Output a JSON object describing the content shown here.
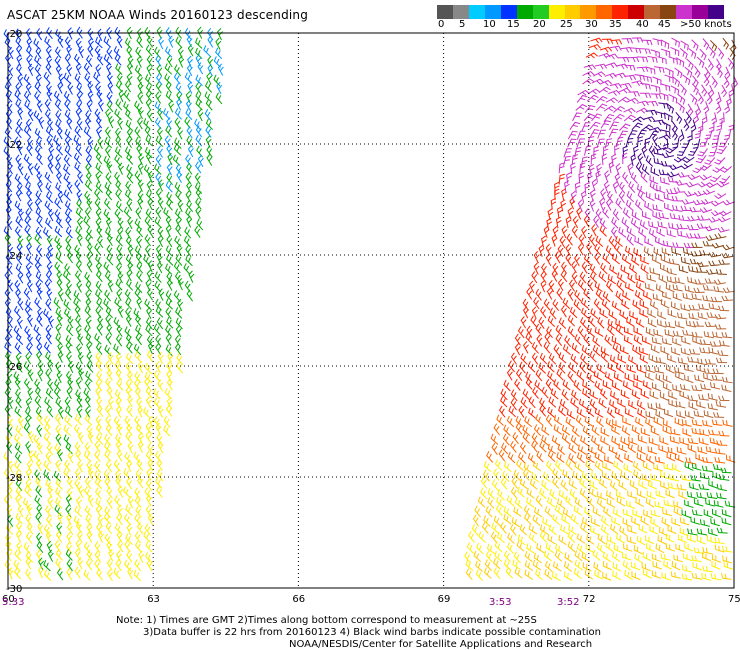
{
  "title": "ASCAT 25KM NOAA Winds 20160123 descending",
  "colorbar": {
    "colors": [
      "#555555",
      "#888888",
      "#00ccff",
      "#0099ff",
      "#0033ff",
      "#00aa00",
      "#22cc22",
      "#ffee00",
      "#ffcc00",
      "#ff9900",
      "#ff6600",
      "#ff2200",
      "#cc0000",
      "#bb6633",
      "#884411",
      "#cc33cc",
      "#990099",
      "#440088"
    ],
    "labels": [
      "0",
      "5",
      "10",
      "15",
      "20",
      "25",
      "30",
      "35",
      "40",
      "45",
      ">50 knots"
    ]
  },
  "axes": {
    "lon_ticks": [
      "60",
      "63",
      "66",
      "69",
      "72",
      "75"
    ],
    "lat_ticks": [
      "-20",
      "-22",
      "-24",
      "-26",
      "-28",
      "-30"
    ],
    "lon_range": [
      60,
      75
    ],
    "lat_range": [
      -20,
      -30
    ],
    "grid": "dotted"
  },
  "pass_times": [
    "5:33",
    "3:53",
    "3:52"
  ],
  "notes": [
    "Note: 1) Times are GMT 2)Times along bottom correspond to measurement at ~25S",
    "3)Data buffer is 22 hrs from 20160123 4) Black wind barbs indicate possible contamination",
    "NOAA/NESDIS/Center for Satellite Applications and Research"
  ],
  "colors": {
    "purple_time": "#800080",
    "grid": "#000000"
  }
}
